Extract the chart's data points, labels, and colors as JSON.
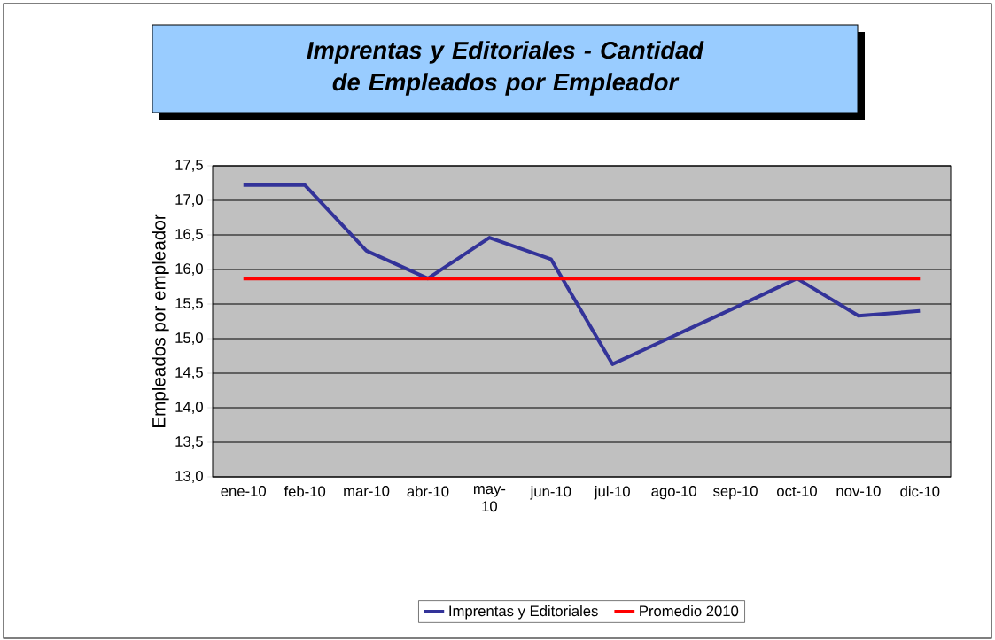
{
  "chart_data": {
    "type": "line",
    "title": "Imprentas y Editoriales - Cantidad de Empleados por Empleador",
    "ylabel": "Empleados por empleador",
    "categories": [
      "ene-10",
      "feb-10",
      "mar-10",
      "abr-10",
      "may-10",
      "jun-10",
      "jul-10",
      "ago-10",
      "sep-10",
      "oct-10",
      "nov-10",
      "dic-10"
    ],
    "series": [
      {
        "name": "Imprentas y Editoriales",
        "color": "#333399",
        "values": [
          17.22,
          17.22,
          16.27,
          15.87,
          16.46,
          16.15,
          14.63,
          15.04,
          15.45,
          15.87,
          15.33,
          15.4
        ]
      },
      {
        "name": "Promedio 2010",
        "color": "#ff0000",
        "values": [
          15.87,
          15.87,
          15.87,
          15.87,
          15.87,
          15.87,
          15.87,
          15.87,
          15.87,
          15.87,
          15.87,
          15.87
        ]
      }
    ],
    "ylim": [
      13.0,
      17.5
    ],
    "yticks": [
      {
        "value": 13.0,
        "label": "13,0"
      },
      {
        "value": 13.5,
        "label": "13,5"
      },
      {
        "value": 14.0,
        "label": "14,0"
      },
      {
        "value": 14.5,
        "label": "14,5"
      },
      {
        "value": 15.0,
        "label": "15,0"
      },
      {
        "value": 15.5,
        "label": "15,5"
      },
      {
        "value": 16.0,
        "label": "16,0"
      },
      {
        "value": 16.5,
        "label": "16,5"
      },
      {
        "value": 17.0,
        "label": "17,0"
      },
      {
        "value": 17.5,
        "label": "17,5"
      }
    ],
    "grid": "y",
    "legend": "bottom",
    "marker": "none",
    "line_style": "solid"
  }
}
